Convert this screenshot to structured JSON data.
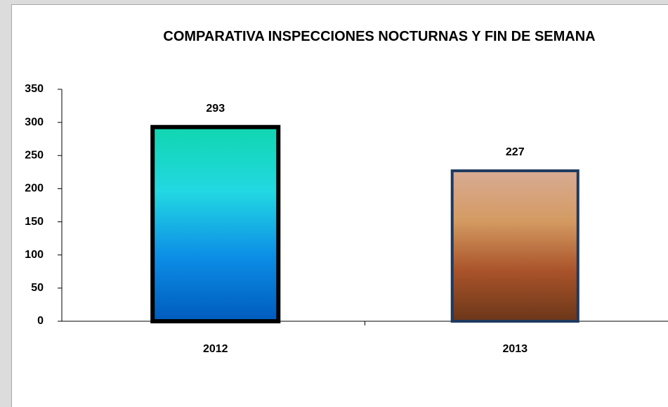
{
  "chart_data": {
    "type": "bar",
    "title": "COMPARATIVA INSPECCIONES NOCTURNAS Y FIN DE SEMANA",
    "categories": [
      "2012",
      "2013"
    ],
    "values": [
      293,
      227
    ],
    "bar_gradients": [
      [
        "#10d6b0",
        "#22d8e2",
        "#0c8ee6",
        "#005bbd"
      ],
      [
        "#d8ab94",
        "#d49a62",
        "#a9532a",
        "#6b3719"
      ]
    ],
    "bar_borders": [
      "#000000",
      "#1f3a5f"
    ],
    "ylim": [
      0,
      350
    ],
    "yticks": [
      0,
      50,
      100,
      150,
      200,
      250,
      300,
      350
    ],
    "grid": false,
    "data_labels": true
  }
}
